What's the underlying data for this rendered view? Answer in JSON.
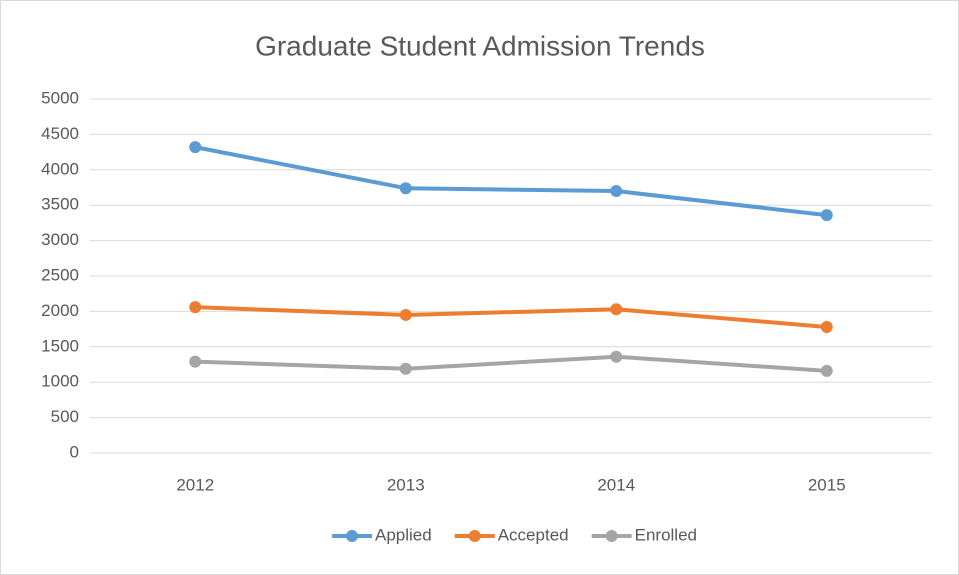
{
  "chart_data": {
    "type": "line",
    "title": "Graduate Student Admission Trends",
    "categories": [
      "2012",
      "2013",
      "2014",
      "2015"
    ],
    "series": [
      {
        "name": "Applied",
        "color": "#5b9bd5",
        "values": [
          4320,
          3740,
          3700,
          3360
        ]
      },
      {
        "name": "Accepted",
        "color": "#ed7d31",
        "values": [
          2060,
          1950,
          2030,
          1780
        ]
      },
      {
        "name": "Enrolled",
        "color": "#a5a5a5",
        "values": [
          1290,
          1190,
          1360,
          1160
        ]
      }
    ],
    "ylim": [
      0,
      5000
    ],
    "yticks": [
      0,
      500,
      1000,
      1500,
      2000,
      2500,
      3000,
      3500,
      4000,
      4500,
      5000
    ],
    "grid": true,
    "legend": "bottom"
  }
}
